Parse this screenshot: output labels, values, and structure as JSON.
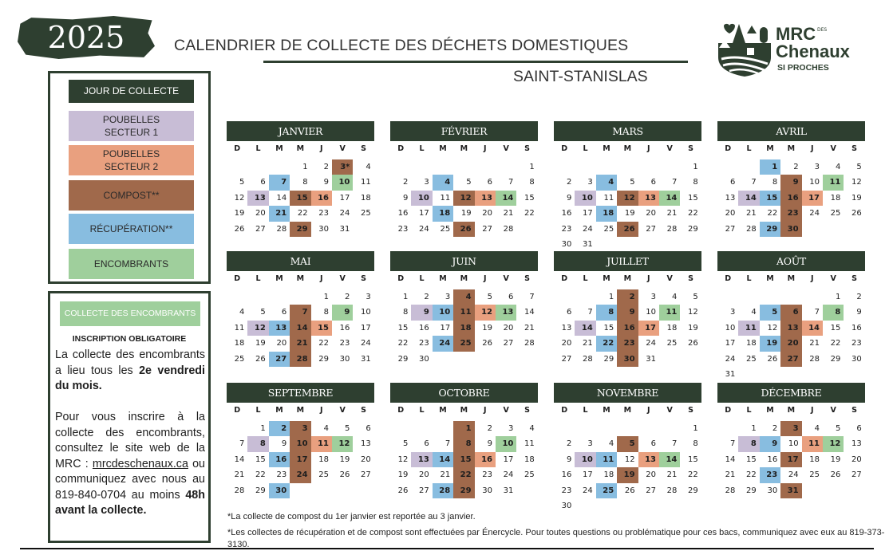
{
  "header": {
    "year": "2025",
    "title": "CALENDRIER DE COLLECTE DES DÉCHETS DOMESTIQUES",
    "subtitle": "SAINT-STANISLAS",
    "logo": {
      "line1": "MRC",
      "des": "DES",
      "line2": "Chenaux",
      "tagline": "SI PROCHES"
    }
  },
  "colors": {
    "dark_green": "#2e3f30",
    "s1": "#c8bdd6",
    "s2": "#e9a07f",
    "c": "#a0694b",
    "r": "#88bde0",
    "e": "#9fcf9c"
  },
  "legend": {
    "title": "JOUR DE COLLECTE",
    "items": [
      {
        "type": "s1",
        "label": "POUBELLES\nSECTEUR 1"
      },
      {
        "type": "s2",
        "label": "POUBELLES\nSECTEUR 2"
      },
      {
        "type": "c",
        "label": "COMPOST**"
      },
      {
        "type": "r",
        "label": "RÉCUPÉRATION**"
      },
      {
        "type": "e",
        "label": "ENCOMBRANTS"
      }
    ]
  },
  "info": {
    "button": "COLLECTE DES ENCOMBRANTS",
    "heading": "INSCRIPTION OBLIGATOIRE",
    "p1_a": "La collecte des encombrants a lieu tous les ",
    "p1_b": "2e vendredi du mois.",
    "p2_a": "Pour vous inscrire à la collecte des encombrants, consultez le site web de la MRC : ",
    "p2_link": "mrcdeschenaux.ca",
    "p2_b": " ou communiquez avec nous au 819-840-0704 au moins ",
    "p2_c": "48h avant la collecte."
  },
  "weekdays": [
    "D",
    "L",
    "M",
    "M",
    "J",
    "V",
    "S"
  ],
  "months": [
    {
      "name": "JANVIER",
      "starts_on": 3,
      "days": 31,
      "marks": [
        {
          "day": 3,
          "type": "c",
          "label": "3*"
        },
        {
          "day": 7,
          "type": "r"
        },
        {
          "day": 10,
          "type": "e"
        },
        {
          "day": 13,
          "type": "s1"
        },
        {
          "day": 15,
          "type": "c"
        },
        {
          "day": 16,
          "type": "s2"
        },
        {
          "day": 21,
          "type": "r"
        },
        {
          "day": 29,
          "type": "c"
        }
      ]
    },
    {
      "name": "FÉVRIER",
      "starts_on": 6,
      "days": 28,
      "marks": [
        {
          "day": 4,
          "type": "r"
        },
        {
          "day": 10,
          "type": "s1"
        },
        {
          "day": 12,
          "type": "c"
        },
        {
          "day": 13,
          "type": "s2"
        },
        {
          "day": 14,
          "type": "e"
        },
        {
          "day": 18,
          "type": "r"
        },
        {
          "day": 26,
          "type": "c"
        }
      ]
    },
    {
      "name": "MARS",
      "starts_on": 6,
      "days": 31,
      "marks": [
        {
          "day": 4,
          "type": "r"
        },
        {
          "day": 10,
          "type": "s1"
        },
        {
          "day": 12,
          "type": "c"
        },
        {
          "day": 13,
          "type": "s2"
        },
        {
          "day": 14,
          "type": "e"
        },
        {
          "day": 18,
          "type": "r"
        },
        {
          "day": 26,
          "type": "c"
        }
      ]
    },
    {
      "name": "AVRIL",
      "starts_on": 2,
      "days": 30,
      "marks": [
        {
          "day": 1,
          "type": "r"
        },
        {
          "day": 9,
          "type": "c"
        },
        {
          "day": 11,
          "type": "e"
        },
        {
          "day": 14,
          "type": "s1"
        },
        {
          "day": 15,
          "type": "r"
        },
        {
          "day": 16,
          "type": "c"
        },
        {
          "day": 17,
          "type": "s2"
        },
        {
          "day": 23,
          "type": "c"
        },
        {
          "day": 29,
          "type": "r"
        },
        {
          "day": 30,
          "type": "c"
        }
      ]
    },
    {
      "name": "MAI",
      "starts_on": 4,
      "days": 31,
      "marks": [
        {
          "day": 7,
          "type": "c"
        },
        {
          "day": 9,
          "type": "e"
        },
        {
          "day": 12,
          "type": "s1"
        },
        {
          "day": 13,
          "type": "r"
        },
        {
          "day": 14,
          "type": "c"
        },
        {
          "day": 15,
          "type": "s2"
        },
        {
          "day": 21,
          "type": "c"
        },
        {
          "day": 27,
          "type": "r"
        },
        {
          "day": 28,
          "type": "c"
        }
      ]
    },
    {
      "name": "JUIN",
      "starts_on": 0,
      "days": 30,
      "marks": [
        {
          "day": 4,
          "type": "c"
        },
        {
          "day": 9,
          "type": "s1"
        },
        {
          "day": 10,
          "type": "r"
        },
        {
          "day": 11,
          "type": "c"
        },
        {
          "day": 12,
          "type": "s2"
        },
        {
          "day": 13,
          "type": "e"
        },
        {
          "day": 18,
          "type": "c"
        },
        {
          "day": 24,
          "type": "r"
        },
        {
          "day": 25,
          "type": "c"
        }
      ]
    },
    {
      "name": "JUILLET",
      "starts_on": 2,
      "days": 31,
      "marks": [
        {
          "day": 2,
          "type": "c"
        },
        {
          "day": 8,
          "type": "r"
        },
        {
          "day": 9,
          "type": "c"
        },
        {
          "day": 11,
          "type": "e"
        },
        {
          "day": 14,
          "type": "s1"
        },
        {
          "day": 16,
          "type": "c"
        },
        {
          "day": 17,
          "type": "s2"
        },
        {
          "day": 22,
          "type": "r"
        },
        {
          "day": 23,
          "type": "c"
        },
        {
          "day": 30,
          "type": "c"
        }
      ]
    },
    {
      "name": "AOÛT",
      "starts_on": 5,
      "days": 31,
      "marks": [
        {
          "day": 5,
          "type": "r"
        },
        {
          "day": 6,
          "type": "c"
        },
        {
          "day": 8,
          "type": "e"
        },
        {
          "day": 11,
          "type": "s1"
        },
        {
          "day": 13,
          "type": "c"
        },
        {
          "day": 14,
          "type": "s2"
        },
        {
          "day": 19,
          "type": "r"
        },
        {
          "day": 20,
          "type": "c"
        },
        {
          "day": 27,
          "type": "c"
        }
      ]
    },
    {
      "name": "SEPTEMBRE",
      "starts_on": 1,
      "days": 30,
      "marks": [
        {
          "day": 2,
          "type": "r"
        },
        {
          "day": 3,
          "type": "c"
        },
        {
          "day": 8,
          "type": "s1"
        },
        {
          "day": 10,
          "type": "c"
        },
        {
          "day": 11,
          "type": "s2"
        },
        {
          "day": 12,
          "type": "e"
        },
        {
          "day": 16,
          "type": "r"
        },
        {
          "day": 17,
          "type": "c"
        },
        {
          "day": 24,
          "type": "c"
        },
        {
          "day": 30,
          "type": "r"
        }
      ]
    },
    {
      "name": "OCTOBRE",
      "starts_on": 3,
      "days": 31,
      "marks": [
        {
          "day": 1,
          "type": "c"
        },
        {
          "day": 8,
          "type": "c"
        },
        {
          "day": 10,
          "type": "e"
        },
        {
          "day": 13,
          "type": "s1"
        },
        {
          "day": 14,
          "type": "r"
        },
        {
          "day": 15,
          "type": "c"
        },
        {
          "day": 16,
          "type": "s2"
        },
        {
          "day": 22,
          "type": "c"
        },
        {
          "day": 28,
          "type": "r"
        },
        {
          "day": 29,
          "type": "c"
        }
      ]
    },
    {
      "name": "NOVEMBRE",
      "starts_on": 6,
      "days": 30,
      "marks": [
        {
          "day": 5,
          "type": "c"
        },
        {
          "day": 10,
          "type": "s1"
        },
        {
          "day": 11,
          "type": "r"
        },
        {
          "day": 13,
          "type": "s2"
        },
        {
          "day": 14,
          "type": "e"
        },
        {
          "day": 19,
          "type": "c"
        },
        {
          "day": 25,
          "type": "r"
        }
      ]
    },
    {
      "name": "DÉCEMBRE",
      "starts_on": 1,
      "days": 31,
      "marks": [
        {
          "day": 3,
          "type": "c"
        },
        {
          "day": 8,
          "type": "s1"
        },
        {
          "day": 9,
          "type": "r"
        },
        {
          "day": 11,
          "type": "s2"
        },
        {
          "day": 12,
          "type": "e"
        },
        {
          "day": 17,
          "type": "c"
        },
        {
          "day": 23,
          "type": "r"
        },
        {
          "day": 31,
          "type": "c"
        }
      ]
    }
  ],
  "notes": [
    "*La collecte de compost du 1er janvier est reportée au 3 janvier.",
    "*Les collectes de récupération et de compost sont effectuées par Énercycle. Pour toutes questions ou problématique pour ces bacs, communiquez avec eux au 819-373-3130."
  ]
}
